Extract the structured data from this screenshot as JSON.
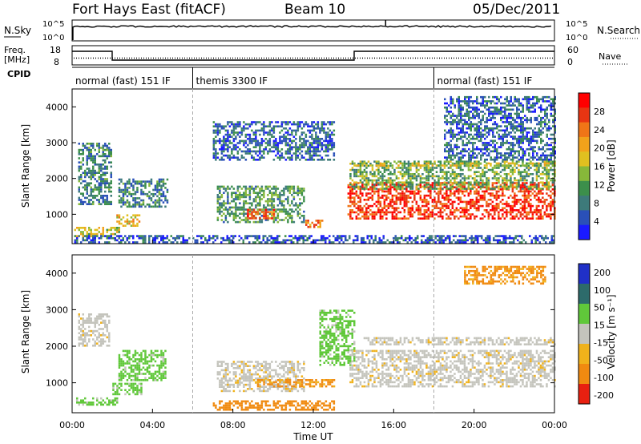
{
  "header": {
    "station": "Fort Hays East (fitACF)",
    "beam": "Beam 10",
    "date": "05/Dec/2011"
  },
  "top_panel": {
    "left_label": "N.Sky",
    "right_label": "N.Search",
    "left_ticks": [
      "10^5",
      "10^0"
    ],
    "right_ticks": [
      "10^5",
      "10^0"
    ]
  },
  "freq_panel": {
    "left_label_1": "Freq.",
    "left_label_2": "[MHz]",
    "right_label": "Nave",
    "left_ticks": [
      "18",
      "8"
    ],
    "right_ticks": [
      "60",
      "0"
    ]
  },
  "cpid": {
    "label": "CPID",
    "segments": [
      {
        "label": "normal (fast) 151 IF",
        "start_h": 0,
        "end_h": 6
      },
      {
        "label": "themis 3300 IF",
        "start_h": 6,
        "end_h": 18
      },
      {
        "label": "normal (fast) 151 IF",
        "start_h": 18,
        "end_h": 24
      }
    ]
  },
  "colorbars": {
    "power": {
      "label": "Power [dB]",
      "ticks": [
        "28",
        "24",
        "20",
        "16",
        "12",
        "8",
        "4"
      ]
    },
    "velocity": {
      "label": "Velocity [m s⁻¹]",
      "ticks": [
        "200",
        "100",
        "50",
        "15",
        "-15",
        "-50",
        "-100",
        "-200"
      ]
    }
  },
  "chart_data": [
    {
      "type": "heatmap",
      "title": "Power",
      "xlabel": "Time UT",
      "ylabel": "Slant Range [km]",
      "xlim_h": [
        0,
        24
      ],
      "ylim": [
        180,
        4500
      ],
      "x_ticks": [
        "00:00",
        "04:00",
        "08:00",
        "12:00",
        "16:00",
        "20:00",
        "00:00"
      ],
      "y_ticks": [
        1000,
        2000,
        3000,
        4000
      ],
      "colorbar": "Power [dB]",
      "regions": [
        {
          "t0": 0.1,
          "t1": 2.3,
          "r0": 380,
          "r1": 650,
          "level": 16
        },
        {
          "t0": 0.3,
          "t1": 1.9,
          "r0": 1300,
          "r1": 3000,
          "level": 8
        },
        {
          "t0": 2.2,
          "t1": 3.3,
          "r0": 700,
          "r1": 1000,
          "level": 18
        },
        {
          "t0": 2.3,
          "t1": 4.7,
          "r0": 1200,
          "r1": 2000,
          "level": 8
        },
        {
          "t0": 7.2,
          "t1": 11.5,
          "r0": 800,
          "r1": 1800,
          "level": 10
        },
        {
          "t0": 8.7,
          "t1": 10.0,
          "r0": 880,
          "r1": 1150,
          "level": 24
        },
        {
          "t0": 11.6,
          "t1": 12.4,
          "r0": 650,
          "r1": 850,
          "level": 22
        },
        {
          "t0": 13.7,
          "t1": 24.0,
          "r0": 900,
          "r1": 1900,
          "level": 26
        },
        {
          "t0": 13.8,
          "t1": 24.0,
          "r0": 1700,
          "r1": 2500,
          "level": 12
        },
        {
          "t0": 14.0,
          "t1": 24.0,
          "r0": 2350,
          "r1": 2450,
          "level": 16
        },
        {
          "t0": 7.0,
          "t1": 13.0,
          "r0": 2500,
          "r1": 3600,
          "level": 6
        },
        {
          "t0": 18.5,
          "t1": 24.0,
          "r0": 2500,
          "r1": 4300,
          "level": 6
        },
        {
          "t0": 0.0,
          "t1": 24.0,
          "r0": 200,
          "r1": 420,
          "level": 5
        }
      ]
    },
    {
      "type": "heatmap",
      "title": "Velocity",
      "xlabel": "Time UT",
      "ylabel": "Slant Range [km]",
      "xlim_h": [
        0,
        24
      ],
      "ylim": [
        180,
        4500
      ],
      "x_ticks": [
        "00:00",
        "04:00",
        "08:00",
        "12:00",
        "16:00",
        "20:00",
        "00:00"
      ],
      "y_ticks": [
        1000,
        2000,
        3000,
        4000
      ],
      "colorbar": "Velocity [m s⁻¹]",
      "regions": [
        {
          "t0": 0.2,
          "t1": 2.2,
          "r0": 380,
          "r1": 600,
          "vel": 40
        },
        {
          "t0": 0.3,
          "t1": 1.8,
          "r0": 2000,
          "r1": 2900,
          "vel": 0
        },
        {
          "t0": 2.0,
          "t1": 3.4,
          "r0": 700,
          "r1": 1000,
          "vel": 40
        },
        {
          "t0": 2.3,
          "t1": 4.6,
          "r0": 1100,
          "r1": 1900,
          "vel": 40
        },
        {
          "t0": 7.0,
          "t1": 13.0,
          "r0": 250,
          "r1": 520,
          "vel": -70
        },
        {
          "t0": 7.2,
          "t1": 11.5,
          "r0": 800,
          "r1": 1600,
          "vel": 0
        },
        {
          "t0": 12.3,
          "t1": 14.0,
          "r0": 1500,
          "r1": 3000,
          "vel": 40
        },
        {
          "t0": 13.8,
          "t1": 24.0,
          "r0": 900,
          "r1": 1900,
          "vel": 0
        },
        {
          "t0": 14.5,
          "t1": 24.0,
          "r0": 2050,
          "r1": 2250,
          "vel": 0
        },
        {
          "t0": 19.5,
          "t1": 23.5,
          "r0": 3700,
          "r1": 4200,
          "vel": -60
        },
        {
          "t0": 9.0,
          "t1": 13.0,
          "r0": 900,
          "r1": 1100,
          "vel": -60
        }
      ]
    }
  ]
}
